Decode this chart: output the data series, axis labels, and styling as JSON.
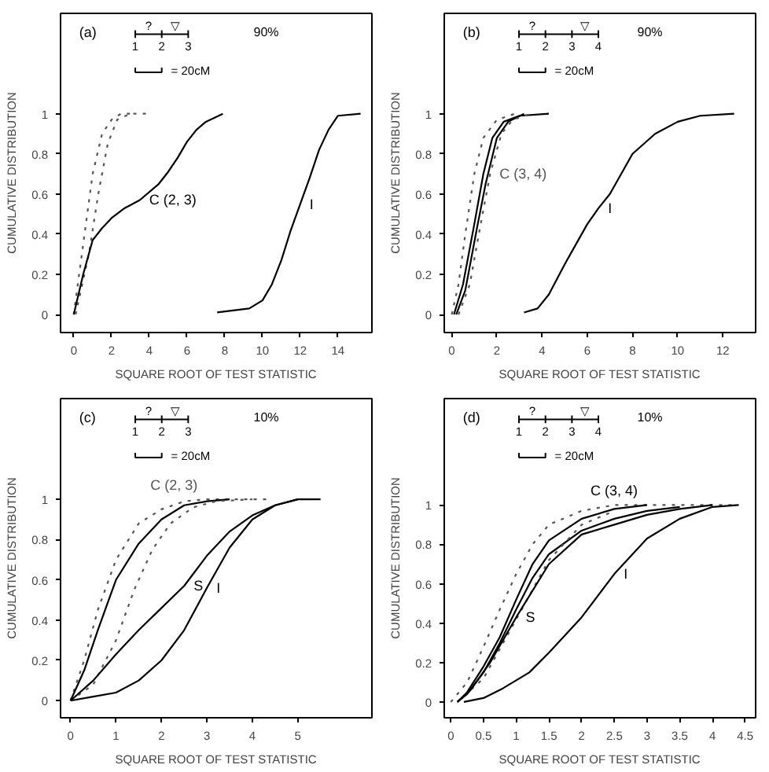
{
  "chart_data": [
    {
      "type": "line",
      "xlabel": "SQUARE ROOT OF TEST STATISTIC",
      "ylabel": "CUMULATIVE DISTRIBUTION",
      "xlim": [
        -0.7,
        15.8
      ],
      "ylim": [
        -0.09,
        1.5
      ],
      "xticks": [
        0,
        2,
        4,
        6,
        8,
        10,
        12,
        14
      ],
      "yticks": [
        0,
        0.2,
        0.4,
        0.6,
        0.8,
        1
      ],
      "grid": false,
      "annotations": [
        "(a)",
        "90%",
        "?",
        "▽",
        "1",
        "2",
        "3",
        "= 20cM"
      ],
      "series": [
        {
          "color": "#555555",
          "line_style": "dotted",
          "x": [
            0,
            0.5,
            1,
            1.5,
            2,
            2.5,
            3
          ],
          "values": [
            0,
            0.35,
            0.7,
            0.9,
            0.97,
            1.0,
            1.0
          ]
        },
        {
          "color": "#555555",
          "line_style": "dotted",
          "x": [
            0.1,
            0.8,
            1.3,
            1.8,
            2.3,
            3,
            4.1
          ],
          "values": [
            0,
            0.3,
            0.6,
            0.85,
            0.97,
            1.0,
            1.0
          ]
        },
        {
          "name": "C (2, 3)",
          "color": "#000000",
          "line_style": "solid",
          "x": [
            0,
            0.5,
            1,
            1.5,
            2,
            2.7,
            3.5,
            4.5,
            5,
            5.5,
            6,
            6.5,
            7,
            7.9
          ],
          "values": [
            0,
            0.2,
            0.37,
            0.43,
            0.48,
            0.53,
            0.57,
            0.65,
            0.71,
            0.78,
            0.86,
            0.92,
            0.96,
            1.0
          ]
        },
        {
          "name": "I",
          "color": "#000000",
          "line_style": "solid",
          "x": [
            7.6,
            9.3,
            10,
            10.5,
            11,
            11.5,
            12,
            12.5,
            13,
            13.5,
            14,
            15.2
          ],
          "values": [
            0.01,
            0.03,
            0.07,
            0.15,
            0.27,
            0.42,
            0.55,
            0.68,
            0.82,
            0.92,
            0.99,
            1.0
          ]
        }
      ]
    },
    {
      "type": "line",
      "xlabel": "SQUARE ROOT OF TEST STATISTIC",
      "ylabel": "CUMULATIVE DISTRIBUTION",
      "xlim": [
        -0.33,
        13.45
      ],
      "ylim": [
        -0.09,
        1.5
      ],
      "xticks": [
        0,
        2,
        4,
        6,
        8,
        10,
        12
      ],
      "yticks": [
        0,
        0.2,
        0.4,
        0.6,
        0.8,
        1
      ],
      "grid": false,
      "annotations": [
        "(b)",
        "90%",
        "?",
        "▽",
        "1",
        "2",
        "3",
        "4",
        "= 20cM"
      ],
      "series": [
        {
          "color": "#555555",
          "line_style": "dotted",
          "x": [
            0,
            0.3,
            0.6,
            1,
            1.4,
            2,
            2.8
          ],
          "values": [
            0,
            0.15,
            0.4,
            0.7,
            0.88,
            0.97,
            1.0
          ]
        },
        {
          "color": "#000000",
          "line_style": "solid",
          "x": [
            0.1,
            0.5,
            1,
            1.4,
            1.8,
            2.3,
            3,
            4.3
          ],
          "values": [
            0,
            0.15,
            0.45,
            0.7,
            0.88,
            0.96,
            0.99,
            1.0
          ]
        },
        {
          "color": "#000000",
          "line_style": "solid",
          "x": [
            0.2,
            0.6,
            1.1,
            1.5,
            2,
            2.5,
            3.2
          ],
          "values": [
            0,
            0.12,
            0.42,
            0.65,
            0.88,
            0.96,
            1.0
          ]
        },
        {
          "name": "C (3, 4)",
          "color": "#555555",
          "line_style": "dotted",
          "x": [
            0.3,
            0.8,
            1.2,
            1.7,
            2.2,
            2.7,
            3.5
          ],
          "values": [
            0,
            0.15,
            0.4,
            0.7,
            0.9,
            0.97,
            1.0
          ]
        },
        {
          "name": "I",
          "color": "#000000",
          "line_style": "solid",
          "x": [
            3.2,
            3.8,
            4.3,
            5,
            5.5,
            6,
            6.5,
            7,
            7.5,
            8,
            9,
            10,
            11,
            12.5
          ],
          "values": [
            0.01,
            0.03,
            0.1,
            0.25,
            0.35,
            0.45,
            0.53,
            0.6,
            0.7,
            0.8,
            0.9,
            0.96,
            0.99,
            1.0
          ]
        }
      ]
    },
    {
      "type": "line",
      "xlabel": "SQUARE ROOT OF TEST STATISTIC",
      "ylabel": "CUMULATIVE DISTRIBUTION",
      "xlim": [
        -0.22,
        6.63
      ],
      "ylim": [
        -0.085,
        1.5
      ],
      "xticks": [
        0,
        1,
        2,
        3,
        4,
        5
      ],
      "yticks": [
        0,
        0.2,
        0.4,
        0.6,
        0.8,
        1
      ],
      "grid": false,
      "annotations": [
        "(c)",
        "10%",
        "?",
        "▽",
        "1",
        "2",
        "3",
        "= 20cM"
      ],
      "series": [
        {
          "name": "C (2, 3)",
          "color": "#555555",
          "line_style": "dotted",
          "x": [
            0,
            0.3,
            0.6,
            1,
            1.5,
            2,
            2.5,
            3,
            4.4
          ],
          "values": [
            0,
            0.2,
            0.45,
            0.7,
            0.88,
            0.95,
            0.99,
            1.0,
            1.0
          ]
        },
        {
          "color": "#000000",
          "line_style": "solid",
          "x": [
            0,
            0.3,
            0.6,
            1,
            1.5,
            2,
            2.5,
            3,
            3.5
          ],
          "values": [
            0,
            0.15,
            0.35,
            0.6,
            0.78,
            0.9,
            0.97,
            0.99,
            1.0
          ]
        },
        {
          "color": "#555555",
          "line_style": "dotted",
          "x": [
            0,
            0.5,
            1,
            1.4,
            1.8,
            2.2,
            2.7,
            3.2,
            4
          ],
          "values": [
            0,
            0.08,
            0.3,
            0.55,
            0.75,
            0.88,
            0.96,
            0.99,
            1.0
          ]
        },
        {
          "name": "S",
          "color": "#000000",
          "line_style": "solid",
          "x": [
            0,
            0.5,
            1,
            1.5,
            2,
            2.5,
            3,
            3.5,
            4,
            4.5,
            5
          ],
          "values": [
            0,
            0.1,
            0.23,
            0.35,
            0.46,
            0.57,
            0.72,
            0.84,
            0.92,
            0.97,
            1.0
          ]
        },
        {
          "name": "I",
          "color": "#000000",
          "line_style": "solid",
          "x": [
            0,
            0.5,
            1,
            1.5,
            2,
            2.5,
            3,
            3.5,
            4,
            4.5,
            5,
            5.5
          ],
          "values": [
            0,
            0.02,
            0.04,
            0.1,
            0.2,
            0.35,
            0.56,
            0.76,
            0.9,
            0.97,
            1.0,
            1.0
          ]
        }
      ]
    },
    {
      "type": "line",
      "xlabel": "SQUARE ROOT OF TEST STATISTIC",
      "ylabel": "CUMULATIVE DISTRIBUTION",
      "xlim": [
        -0.1,
        4.66
      ],
      "ylim": [
        -0.08,
        1.54
      ],
      "xticks": [
        0,
        0.5,
        1,
        1.5,
        2,
        2.5,
        3,
        3.5,
        4,
        4.5
      ],
      "yticks": [
        0,
        0.2,
        0.4,
        0.6,
        0.8,
        1
      ],
      "grid": false,
      "annotations": [
        "(d)",
        "10%",
        "?",
        "▽",
        "1",
        "2",
        "3",
        "4",
        "= 20cM"
      ],
      "series": [
        {
          "color": "#555555",
          "line_style": "dotted",
          "x": [
            0,
            0.25,
            0.5,
            0.75,
            1,
            1.25,
            1.5,
            2,
            2.5,
            4.4
          ],
          "values": [
            0,
            0.1,
            0.28,
            0.47,
            0.65,
            0.8,
            0.9,
            0.97,
            1.0,
            1.0
          ]
        },
        {
          "name": "C (3, 4)",
          "color": "#000000",
          "line_style": "solid",
          "x": [
            0.1,
            0.25,
            0.5,
            0.75,
            1,
            1.25,
            1.5,
            2,
            2.5,
            3
          ],
          "values": [
            0,
            0.05,
            0.18,
            0.33,
            0.52,
            0.7,
            0.82,
            0.93,
            0.98,
            1.0
          ]
        },
        {
          "color": "#000000",
          "line_style": "solid",
          "x": [
            0.1,
            0.25,
            0.5,
            0.75,
            1,
            1.25,
            1.5,
            2,
            2.5,
            3,
            3.5
          ],
          "values": [
            0,
            0.04,
            0.15,
            0.3,
            0.47,
            0.63,
            0.75,
            0.87,
            0.93,
            0.97,
            0.99
          ]
        },
        {
          "color": "#555555",
          "line_style": "dotted",
          "x": [
            0.1,
            0.5,
            1,
            1.5,
            2,
            2.5
          ],
          "values": [
            0,
            0.12,
            0.42,
            0.72,
            0.9,
            0.97
          ]
        },
        {
          "name": "S",
          "color": "#000000",
          "line_style": "solid",
          "x": [
            0.1,
            0.3,
            0.6,
            1,
            1.5,
            2,
            2.5,
            3,
            3.5,
            4
          ],
          "values": [
            0,
            0.06,
            0.2,
            0.43,
            0.7,
            0.85,
            0.9,
            0.95,
            0.98,
            1.0
          ]
        },
        {
          "name": "I",
          "color": "#000000",
          "line_style": "solid",
          "x": [
            0.2,
            0.5,
            0.8,
            1.2,
            1.5,
            2,
            2.5,
            3,
            3.5,
            4,
            4.4
          ],
          "values": [
            0,
            0.02,
            0.07,
            0.15,
            0.25,
            0.43,
            0.65,
            0.83,
            0.93,
            0.99,
            1.0
          ]
        }
      ]
    }
  ]
}
